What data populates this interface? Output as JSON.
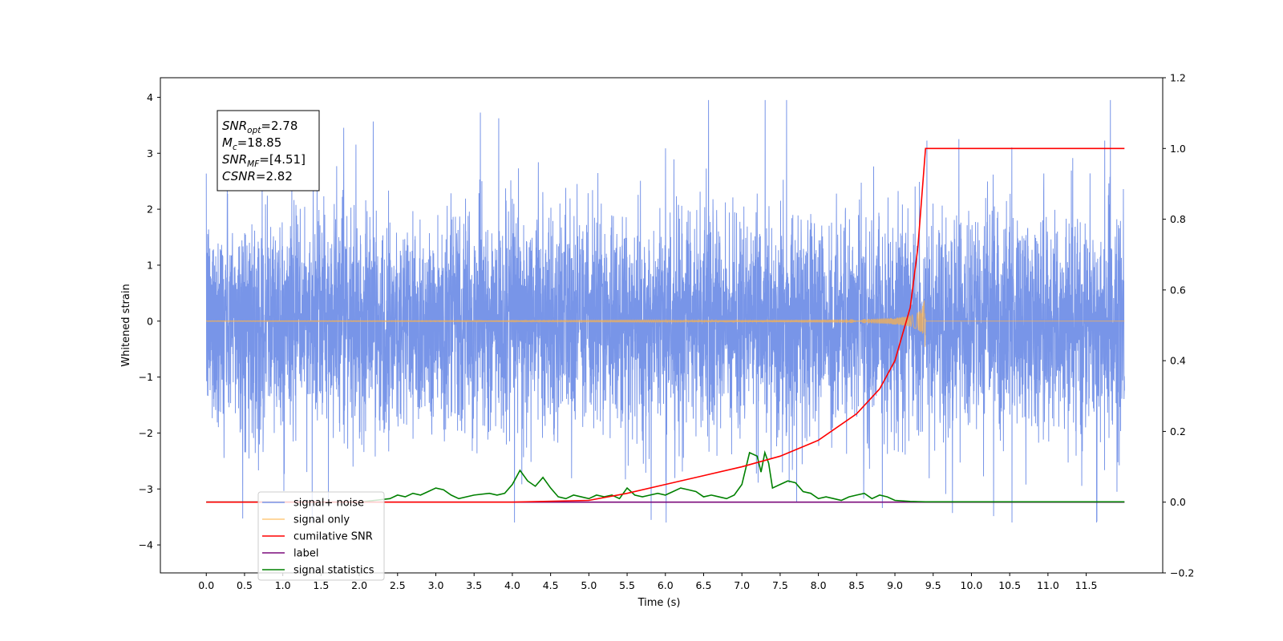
{
  "chart_data": {
    "type": "line",
    "title": "",
    "xlabel": "Time (s)",
    "ylabel": "Whitened strain",
    "xlim": [
      -0.6,
      12.5
    ],
    "ylim": [
      -4.5,
      4.35
    ],
    "y2lim": [
      -0.2,
      1.2
    ],
    "x_ticks": [
      0.0,
      0.5,
      1.0,
      1.5,
      2.0,
      2.5,
      3.0,
      3.5,
      4.0,
      4.5,
      5.0,
      5.5,
      6.0,
      6.5,
      7.0,
      7.5,
      8.0,
      8.5,
      9.0,
      9.5,
      10.0,
      10.5,
      11.0,
      11.5
    ],
    "x_tick_labels": [
      "0.0",
      "0.5",
      "1.0",
      "1.5",
      "2.0",
      "2.5",
      "3.0",
      "3.5",
      "4.0",
      "4.5",
      "5.0",
      "5.5",
      "6.0",
      "6.5",
      "7.0",
      "7.5",
      "8.0",
      "8.5",
      "9.0",
      "9.5",
      "10.0",
      "10.5",
      "11.0",
      "11.5"
    ],
    "y_ticks": [
      -4,
      -3,
      -2,
      -1,
      0,
      1,
      2,
      3,
      4
    ],
    "y_tick_labels": [
      "−4",
      "−3",
      "−2",
      "−1",
      "0",
      "1",
      "2",
      "3",
      "4"
    ],
    "y2_ticks": [
      -0.2,
      0.0,
      0.2,
      0.4,
      0.6,
      0.8,
      1.0,
      1.2
    ],
    "y2_tick_labels": [
      "−0.2",
      "0.0",
      "0.2",
      "0.4",
      "0.6",
      "0.8",
      "1.0",
      "1.2"
    ],
    "legend_position": "lower-left",
    "grid": false,
    "annotation": {
      "lines": [
        {
          "sym": "SNR",
          "sub": "opt",
          "value": "=2.78"
        },
        {
          "sym": "M",
          "sub": "c",
          "value": "=18.85"
        },
        {
          "sym": "SNR",
          "sub": "MF",
          "value": "=[4.51]"
        },
        {
          "sym": "CSNR",
          "sub": "",
          "value": "=2.82"
        }
      ]
    },
    "series": [
      {
        "name": "signal+ noise",
        "color": "#7895e8",
        "axis": "left",
        "x_range": [
          0,
          12
        ],
        "amplitude_typical": 1.3,
        "amplitude_peak": 3.95
      },
      {
        "name": "signal only",
        "color": "#ffb347",
        "axis": "left",
        "x_range": [
          0,
          12
        ],
        "merger_time": 9.4,
        "peak_amplitude": 0.6
      },
      {
        "name": "cumilative SNR",
        "color": "#ff0000",
        "axis": "right",
        "x": [
          0,
          4.0,
          5.0,
          5.5,
          6.0,
          6.5,
          7.0,
          7.5,
          8.0,
          8.5,
          8.8,
          9.0,
          9.2,
          9.3,
          9.35,
          9.4,
          12.0
        ],
        "y": [
          0,
          0,
          0.005,
          0.025,
          0.05,
          0.075,
          0.1,
          0.13,
          0.175,
          0.25,
          0.32,
          0.4,
          0.55,
          0.72,
          0.86,
          1.0,
          1.0
        ]
      },
      {
        "name": "label",
        "color": "#7b0a7b",
        "axis": "right",
        "x": [
          0,
          12
        ],
        "y": [
          0,
          0
        ]
      },
      {
        "name": "signal statistics",
        "color": "#008000",
        "axis": "right",
        "x": [
          0,
          2.0,
          2.2,
          2.4,
          2.5,
          2.6,
          2.7,
          2.8,
          2.9,
          3.0,
          3.1,
          3.2,
          3.3,
          3.5,
          3.7,
          3.8,
          3.9,
          4.0,
          4.1,
          4.2,
          4.3,
          4.4,
          4.5,
          4.6,
          4.7,
          4.8,
          4.9,
          5.0,
          5.1,
          5.2,
          5.3,
          5.4,
          5.5,
          5.6,
          5.7,
          5.8,
          5.9,
          6.0,
          6.1,
          6.2,
          6.3,
          6.4,
          6.5,
          6.6,
          6.7,
          6.8,
          6.9,
          7.0,
          7.1,
          7.2,
          7.25,
          7.3,
          7.35,
          7.4,
          7.5,
          7.6,
          7.7,
          7.8,
          7.9,
          8.0,
          8.1,
          8.2,
          8.3,
          8.4,
          8.5,
          8.6,
          8.7,
          8.8,
          8.9,
          9.0,
          9.2,
          9.4,
          12.0
        ],
        "y": [
          0,
          0,
          0.005,
          0.01,
          0.02,
          0.015,
          0.025,
          0.02,
          0.03,
          0.04,
          0.035,
          0.02,
          0.01,
          0.02,
          0.025,
          0.02,
          0.025,
          0.05,
          0.09,
          0.06,
          0.045,
          0.07,
          0.04,
          0.015,
          0.01,
          0.02,
          0.015,
          0.01,
          0.02,
          0.015,
          0.02,
          0.01,
          0.04,
          0.02,
          0.015,
          0.02,
          0.025,
          0.02,
          0.03,
          0.04,
          0.035,
          0.03,
          0.015,
          0.02,
          0.015,
          0.01,
          0.02,
          0.05,
          0.14,
          0.13,
          0.085,
          0.14,
          0.11,
          0.04,
          0.05,
          0.06,
          0.055,
          0.03,
          0.025,
          0.01,
          0.015,
          0.01,
          0.005,
          0.015,
          0.02,
          0.025,
          0.01,
          0.02,
          0.015,
          0.005,
          0.002,
          0.001,
          0.001
        ]
      }
    ]
  }
}
